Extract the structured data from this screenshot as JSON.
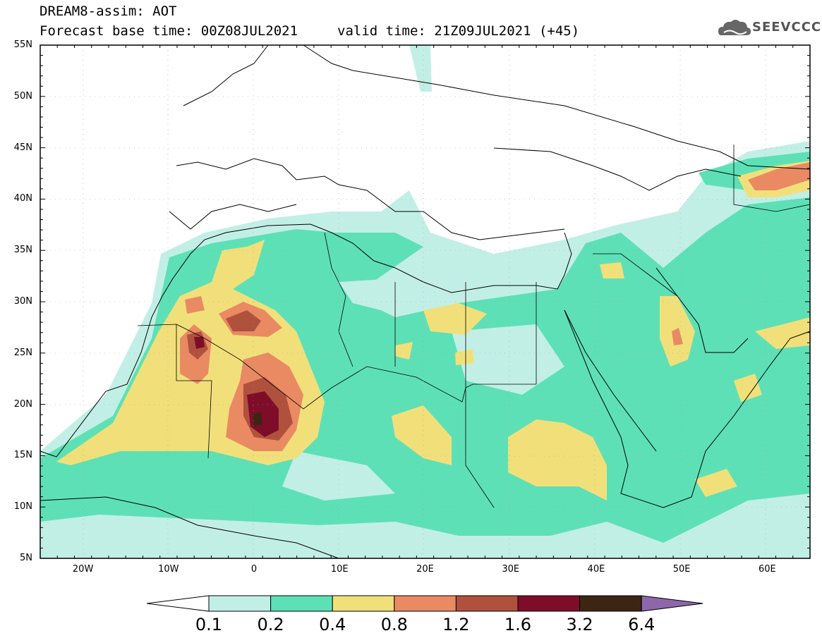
{
  "title": {
    "line1": "DREAM8-assim: AOT",
    "line2": "Forecast base time: 00Z08JUL2021",
    "valid": "valid time: 21Z09JUL2021 (+45)"
  },
  "logo": {
    "text": "SEEVCCC",
    "icon": "cloud-logo-icon"
  },
  "map": {
    "lon_range": [
      -25,
      65
    ],
    "lat_range": [
      5,
      55
    ],
    "lat_ticks": [
      "5N",
      "10N",
      "15N",
      "20N",
      "25N",
      "30N",
      "35N",
      "40N",
      "45N",
      "50N",
      "55N"
    ],
    "lon_ticks": [
      "20W",
      "10W",
      "0",
      "10E",
      "20E",
      "30E",
      "40E",
      "50E",
      "60E"
    ],
    "gridlines": "dotted"
  },
  "colorbar": {
    "labels": [
      "0.1",
      "0.2",
      "0.4",
      "0.8",
      "1.2",
      "1.6",
      "3.2",
      "6.4"
    ],
    "colors": [
      "#c2efe5",
      "#5ee0b6",
      "#f1e07a",
      "#e98a63",
      "#b0513e",
      "#7e0d2a",
      "#3d2514",
      "#8d67a9"
    ],
    "under_color": "#ffffff"
  }
}
